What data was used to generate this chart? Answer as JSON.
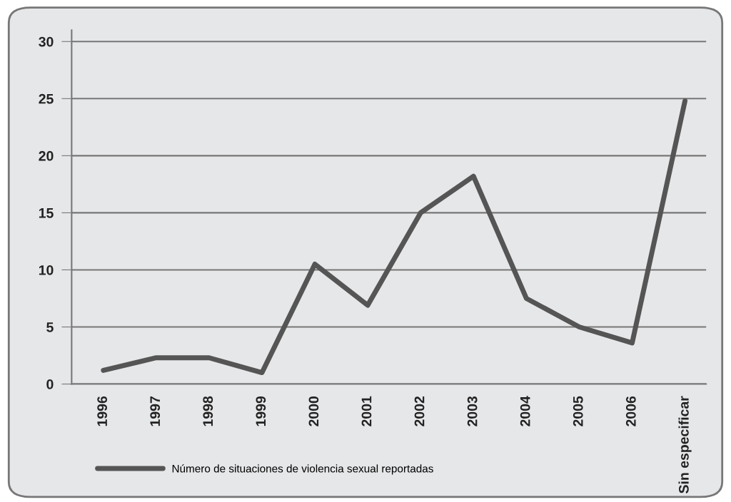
{
  "chart_data": {
    "type": "line",
    "categories": [
      "1996",
      "1997",
      "1998",
      "1999",
      "2000",
      "2001",
      "2002",
      "2003",
      "2004",
      "2005",
      "2006",
      "Sin especificar"
    ],
    "series": [
      {
        "name": "Número de situaciones de violencia sexual reportadas",
        "color": "#555555",
        "values": [
          1.2,
          2.3,
          2.3,
          1.0,
          10.5,
          6.9,
          15.0,
          18.2,
          7.5,
          5.0,
          3.6,
          24.8
        ]
      }
    ],
    "ylim": [
      0,
      31
    ],
    "yticks": [
      0,
      5,
      10,
      15,
      20,
      25,
      30
    ],
    "grid": "y",
    "legend": "bottom left",
    "marker": "none",
    "line_style": "solid"
  }
}
